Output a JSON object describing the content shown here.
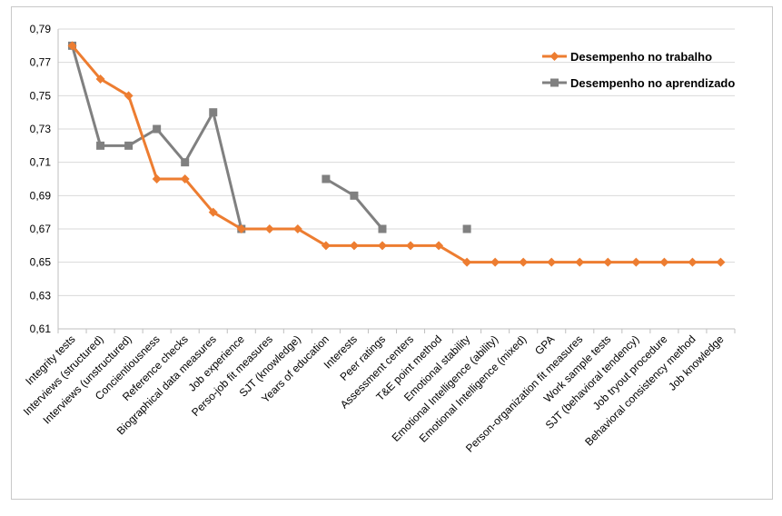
{
  "chart_data": {
    "type": "line",
    "categories": [
      "Integrity tests",
      "Interviews (structured)",
      "Interviews (unstructured)",
      "Concientiousness",
      "Reference checks",
      "Biographical data measures",
      "Job experience",
      "Perso-job fit measures",
      "SJT (knowledge)",
      "Years of education",
      "Interests",
      "Peer ratings",
      "Assessment centers",
      "T&E point method",
      "Emotional stability",
      "Emotional Intelligence (ability)",
      "Emotional Intelligence (mixed)",
      "GPA",
      "Person-organization fit measures",
      "Work sample tests",
      "SJT (behavioral tendency)",
      "Job tryout procedure",
      "Behavioral consistency method",
      "Job knowledge"
    ],
    "series": [
      {
        "name": "Desempenho no trabalho",
        "color": "#ED7D31",
        "marker": "diamond",
        "values": [
          0.78,
          0.76,
          0.75,
          0.7,
          0.7,
          0.68,
          0.67,
          0.67,
          0.67,
          0.66,
          0.66,
          0.66,
          0.66,
          0.66,
          0.65,
          0.65,
          0.65,
          0.65,
          0.65,
          0.65,
          0.65,
          0.65,
          0.65,
          0.65
        ]
      },
      {
        "name": "Desempenho no aprendizado",
        "color": "#808080",
        "marker": "square",
        "values": [
          0.78,
          0.72,
          0.72,
          0.73,
          0.71,
          0.74,
          0.67,
          null,
          null,
          0.7,
          0.69,
          0.67,
          null,
          null,
          0.67,
          null,
          null,
          null,
          null,
          null,
          null,
          null,
          null,
          null
        ]
      }
    ],
    "yticks": [
      "0,61",
      "0,63",
      "0,65",
      "0,67",
      "0,69",
      "0,71",
      "0,73",
      "0,75",
      "0,77",
      "0,79"
    ],
    "ylim": [
      0.61,
      0.79
    ],
    "grid": true,
    "legend": "top-right"
  }
}
